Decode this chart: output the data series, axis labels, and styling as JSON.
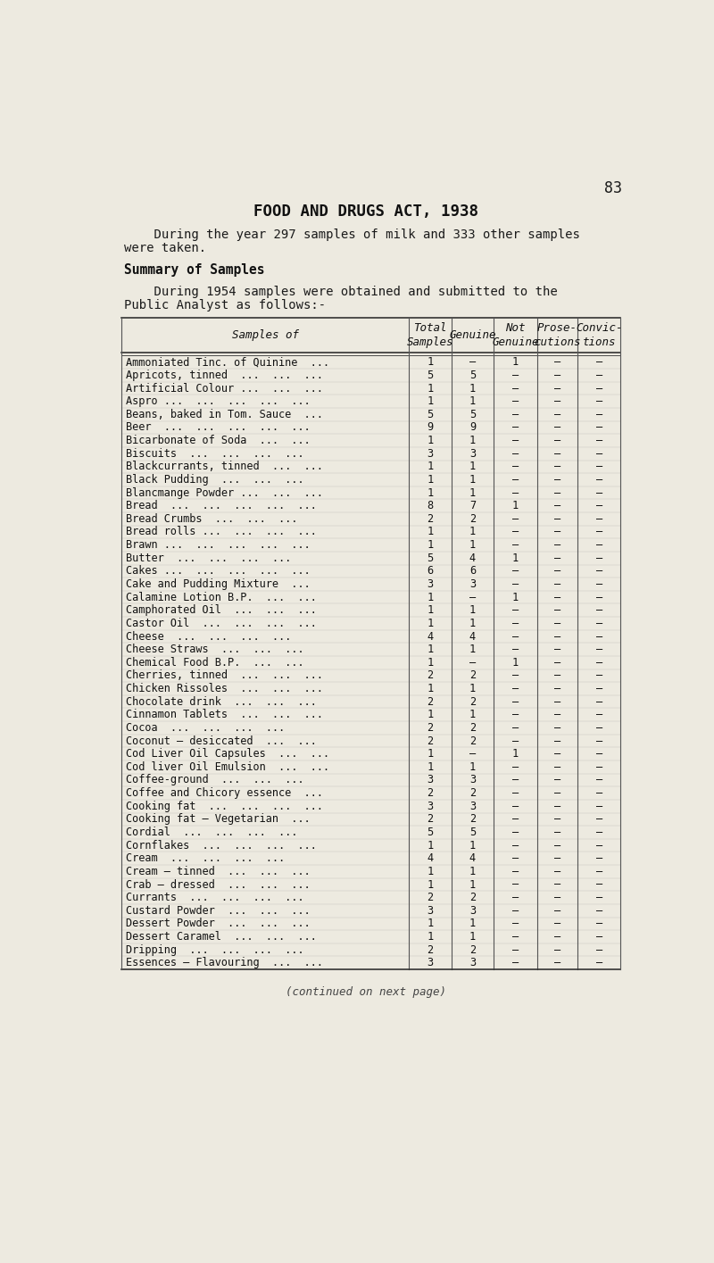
{
  "page_number": "83",
  "title": "FOOD AND DRUGS ACT, 1938",
  "intro_line1": "    During the year 297 samples of milk and 333 other samples",
  "intro_line2": "were taken.",
  "section_heading": "Summary of Samples",
  "section_line1": "    During 1954 samples were obtained and submitted to the",
  "section_line2": "Public Analyst as follows:-",
  "footer_text": "(continued on next page)",
  "bg_color": "#edeae0",
  "table_rows": [
    [
      "Ammoniated Tinc. of Quinine  ...",
      "1",
      "–",
      "1",
      "–",
      "–"
    ],
    [
      "Apricots, tinned  ...  ...  ...",
      "5",
      "5",
      "–",
      "–",
      "–"
    ],
    [
      "Artificial Colour ...  ...  ...",
      "1",
      "1",
      "–",
      "–",
      "–"
    ],
    [
      "Aspro ...  ...  ...  ...  ...",
      "1",
      "1",
      "–",
      "–",
      "–"
    ],
    [
      "Beans, baked in Tom. Sauce  ...",
      "5",
      "5",
      "–",
      "–",
      "–"
    ],
    [
      "Beer  ...  ...  ...  ...  ...",
      "9",
      "9",
      "–",
      "–",
      "–"
    ],
    [
      "Bicarbonate of Soda  ...  ...",
      "1",
      "1",
      "–",
      "–",
      "–"
    ],
    [
      "Biscuits  ...  ...  ...  ...",
      "3",
      "3",
      "–",
      "–",
      "–"
    ],
    [
      "Blackcurrants, tinned  ...  ...",
      "1",
      "1",
      "–",
      "–",
      "–"
    ],
    [
      "Black Pudding  ...  ...  ...",
      "1",
      "1",
      "–",
      "–",
      "–"
    ],
    [
      "Blancmange Powder ...  ...  ...",
      "1",
      "1",
      "–",
      "–",
      "–"
    ],
    [
      "Bread  ...  ...  ...  ...  ...",
      "8",
      "7",
      "1",
      "–",
      "–"
    ],
    [
      "Bread Crumbs  ...  ...  ...",
      "2",
      "2",
      "–",
      "–",
      "–"
    ],
    [
      "Bread rolls ...  ...  ...  ...",
      "1",
      "1",
      "–",
      "–",
      "–"
    ],
    [
      "Brawn ...  ...  ...  ...  ...",
      "1",
      "1",
      "–",
      "–",
      "–"
    ],
    [
      "Butter  ...  ...  ...  ...",
      "5",
      "4",
      "1",
      "–",
      "–"
    ],
    [
      "Cakes ...  ...  ...  ...  ...",
      "6",
      "6",
      "–",
      "–",
      "–"
    ],
    [
      "Cake and Pudding Mixture  ...",
      "3",
      "3",
      "–",
      "–",
      "–"
    ],
    [
      "Calamine Lotion B.P.  ...  ...",
      "1",
      "–",
      "1",
      "–",
      "–"
    ],
    [
      "Camphorated Oil  ...  ...  ...",
      "1",
      "1",
      "–",
      "–",
      "–"
    ],
    [
      "Castor Oil  ...  ...  ...  ...",
      "1",
      "1",
      "–",
      "–",
      "–"
    ],
    [
      "Cheese  ...  ...  ...  ...",
      "4",
      "4",
      "–",
      "–",
      "–"
    ],
    [
      "Cheese Straws  ...  ...  ...",
      "1",
      "1",
      "–",
      "–",
      "–"
    ],
    [
      "Chemical Food B.P.  ...  ...",
      "1",
      "–",
      "1",
      "–",
      "–"
    ],
    [
      "Cherries, tinned  ...  ...  ...",
      "2",
      "2",
      "–",
      "–",
      "–"
    ],
    [
      "Chicken Rissoles  ...  ...  ...",
      "1",
      "1",
      "–",
      "–",
      "–"
    ],
    [
      "Chocolate drink  ...  ...  ...",
      "2",
      "2",
      "–",
      "–",
      "–"
    ],
    [
      "Cinnamon Tablets  ...  ...  ...",
      "1",
      "1",
      "–",
      "–",
      "–"
    ],
    [
      "Cocoa  ...  ...  ...  ...",
      "2",
      "2",
      "–",
      "–",
      "–"
    ],
    [
      "Coconut – desiccated  ...  ...",
      "2",
      "2",
      "–",
      "–",
      "–"
    ],
    [
      "Cod Liver Oil Capsules  ...  ...",
      "1",
      "–",
      "1",
      "–",
      "–"
    ],
    [
      "Cod liver Oil Emulsion  ...  ...",
      "1",
      "1",
      "–",
      "–",
      "–"
    ],
    [
      "Coffee-ground  ...  ...  ...",
      "3",
      "3",
      "–",
      "–",
      "–"
    ],
    [
      "Coffee and Chicory essence  ...",
      "2",
      "2",
      "–",
      "–",
      "–"
    ],
    [
      "Cooking fat  ...  ...  ...  ...",
      "3",
      "3",
      "–",
      "–",
      "–"
    ],
    [
      "Cooking fat – Vegetarian  ...",
      "2",
      "2",
      "–",
      "–",
      "–"
    ],
    [
      "Cordial  ...  ...  ...  ...",
      "5",
      "5",
      "–",
      "–",
      "–"
    ],
    [
      "Cornflakes  ...  ...  ...  ...",
      "1",
      "1",
      "–",
      "–",
      "–"
    ],
    [
      "Cream  ...  ...  ...  ...",
      "4",
      "4",
      "–",
      "–",
      "–"
    ],
    [
      "Cream – tinned  ...  ...  ...",
      "1",
      "1",
      "–",
      "–",
      "–"
    ],
    [
      "Crab – dressed  ...  ...  ...",
      "1",
      "1",
      "–",
      "–",
      "–"
    ],
    [
      "Currants  ...  ...  ...  ...",
      "2",
      "2",
      "–",
      "–",
      "–"
    ],
    [
      "Custard Powder  ...  ...  ...",
      "3",
      "3",
      "–",
      "–",
      "–"
    ],
    [
      "Dessert Powder  ...  ...  ...",
      "1",
      "1",
      "–",
      "–",
      "–"
    ],
    [
      "Dessert Caramel  ...  ...  ...",
      "1",
      "1",
      "–",
      "–",
      "–"
    ],
    [
      "Dripping  ...  ...  ...  ...",
      "2",
      "2",
      "–",
      "–",
      "–"
    ],
    [
      "Essences – Flavouring  ...  ...",
      "3",
      "3",
      "–",
      "–",
      "–"
    ]
  ]
}
